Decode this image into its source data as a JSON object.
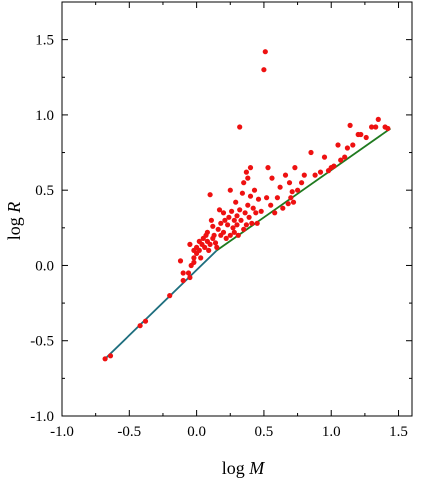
{
  "chart_data": {
    "type": "scatter",
    "xlabel": {
      "prefix": "log ",
      "var": "M"
    },
    "ylabel": {
      "prefix": "log ",
      "var": "R"
    },
    "xlim": [
      -1.0,
      1.6
    ],
    "ylim": [
      -1.0,
      1.75
    ],
    "x_ticks": [
      -1.0,
      -0.5,
      0.0,
      0.5,
      1.0,
      1.5
    ],
    "x_tick_labels": [
      "-1.0",
      "-0.5",
      "0.0",
      "0.5",
      "1.0",
      "1.5"
    ],
    "y_ticks": [
      -1.0,
      -0.5,
      0.0,
      0.5,
      1.0,
      1.5
    ],
    "y_tick_labels": [
      "-1.0",
      "-0.5",
      "0.0",
      "0.5",
      "1.0",
      "1.5"
    ],
    "grid": false,
    "colors": {
      "points": "#ee1111",
      "line_low": "#1e6e7e",
      "line_high": "#1f7a1f",
      "axes": "#000000"
    },
    "series": [
      {
        "type": "scatter",
        "points": [
          [
            -0.68,
            -0.62
          ],
          [
            -0.64,
            -0.6
          ],
          [
            -0.42,
            -0.4
          ],
          [
            -0.38,
            -0.37
          ],
          [
            -0.2,
            -0.2
          ],
          [
            -0.1,
            -0.1
          ],
          [
            -0.12,
            0.03
          ],
          [
            -0.1,
            -0.05
          ],
          [
            -0.06,
            -0.05
          ],
          [
            -0.05,
            -0.08
          ],
          [
            -0.04,
            0.0
          ],
          [
            -0.02,
            0.02
          ],
          [
            -0.05,
            0.14
          ],
          [
            -0.02,
            0.1
          ],
          [
            -0.02,
            0.05
          ],
          [
            0.0,
            0.12
          ],
          [
            0.0,
            0.08
          ],
          [
            0.02,
            0.16
          ],
          [
            0.02,
            0.1
          ],
          [
            0.03,
            0.05
          ],
          [
            0.04,
            0.14
          ],
          [
            0.05,
            0.18
          ],
          [
            0.06,
            0.12
          ],
          [
            0.07,
            0.2
          ],
          [
            0.08,
            0.22
          ],
          [
            0.08,
            0.16
          ],
          [
            0.09,
            0.1
          ],
          [
            0.1,
            0.47
          ],
          [
            0.1,
            0.14
          ],
          [
            0.11,
            0.3
          ],
          [
            0.12,
            0.18
          ],
          [
            0.12,
            0.26
          ],
          [
            0.13,
            0.2
          ],
          [
            0.14,
            0.15
          ],
          [
            0.15,
            0.12
          ],
          [
            0.16,
            0.24
          ],
          [
            0.17,
            0.37
          ],
          [
            0.18,
            0.2
          ],
          [
            0.18,
            0.28
          ],
          [
            0.2,
            0.35
          ],
          [
            0.2,
            0.22
          ],
          [
            0.21,
            0.3
          ],
          [
            0.22,
            0.18
          ],
          [
            0.23,
            0.27
          ],
          [
            0.24,
            0.32
          ],
          [
            0.25,
            0.2
          ],
          [
            0.25,
            0.5
          ],
          [
            0.26,
            0.36
          ],
          [
            0.27,
            0.25
          ],
          [
            0.28,
            0.3
          ],
          [
            0.28,
            0.22
          ],
          [
            0.29,
            0.42
          ],
          [
            0.3,
            0.33
          ],
          [
            0.3,
            0.27
          ],
          [
            0.31,
            0.2
          ],
          [
            0.32,
            0.92
          ],
          [
            0.32,
            0.37
          ],
          [
            0.33,
            0.3
          ],
          [
            0.34,
            0.48
          ],
          [
            0.35,
            0.24
          ],
          [
            0.35,
            0.55
          ],
          [
            0.36,
            0.35
          ],
          [
            0.37,
            0.27
          ],
          [
            0.37,
            0.62
          ],
          [
            0.38,
            0.58
          ],
          [
            0.38,
            0.4
          ],
          [
            0.39,
            0.32
          ],
          [
            0.4,
            0.46
          ],
          [
            0.4,
            0.65
          ],
          [
            0.41,
            0.28
          ],
          [
            0.42,
            0.38
          ],
          [
            0.43,
            0.5
          ],
          [
            0.44,
            0.35
          ],
          [
            0.45,
            0.28
          ],
          [
            0.46,
            0.44
          ],
          [
            0.48,
            0.36
          ],
          [
            0.5,
            1.3
          ],
          [
            0.51,
            1.42
          ],
          [
            0.52,
            0.45
          ],
          [
            0.53,
            0.65
          ],
          [
            0.55,
            0.4
          ],
          [
            0.56,
            0.58
          ],
          [
            0.58,
            0.35
          ],
          [
            0.6,
            0.45
          ],
          [
            0.62,
            0.52
          ],
          [
            0.64,
            0.38
          ],
          [
            0.66,
            0.6
          ],
          [
            0.68,
            0.41
          ],
          [
            0.69,
            0.55
          ],
          [
            0.7,
            0.45
          ],
          [
            0.71,
            0.49
          ],
          [
            0.72,
            0.42
          ],
          [
            0.73,
            0.65
          ],
          [
            0.75,
            0.5
          ],
          [
            0.78,
            0.55
          ],
          [
            0.8,
            0.6
          ],
          [
            0.85,
            0.75
          ],
          [
            0.88,
            0.6
          ],
          [
            0.92,
            0.62
          ],
          [
            0.95,
            0.72
          ],
          [
            0.98,
            0.63
          ],
          [
            1.0,
            0.65
          ],
          [
            1.02,
            0.66
          ],
          [
            1.05,
            0.8
          ],
          [
            1.07,
            0.7
          ],
          [
            1.1,
            0.72
          ],
          [
            1.12,
            0.78
          ],
          [
            1.14,
            0.93
          ],
          [
            1.16,
            0.8
          ],
          [
            1.2,
            0.87
          ],
          [
            1.22,
            0.87
          ],
          [
            1.26,
            0.85
          ],
          [
            1.3,
            0.92
          ],
          [
            1.33,
            0.92
          ],
          [
            1.35,
            0.97
          ],
          [
            1.4,
            0.92
          ],
          [
            1.42,
            0.91
          ]
        ]
      },
      {
        "type": "line",
        "x": [
          -0.68,
          0.15
        ],
        "y": [
          -0.62,
          0.1
        ]
      },
      {
        "type": "line",
        "x": [
          0.15,
          1.44
        ],
        "y": [
          0.1,
          0.91
        ]
      }
    ]
  }
}
